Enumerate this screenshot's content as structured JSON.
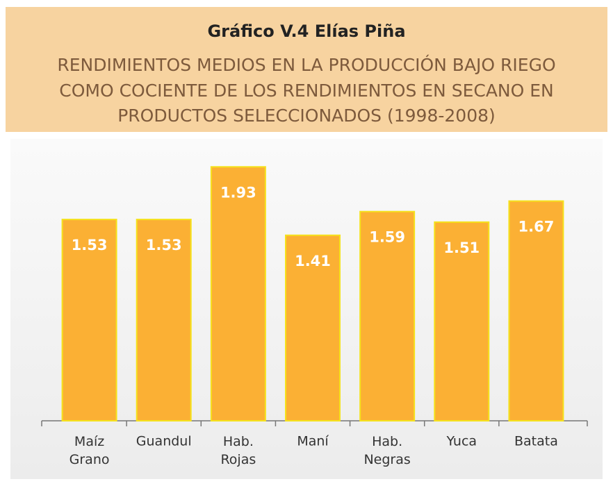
{
  "chart_data": {
    "type": "bar",
    "title": "Gráfico V.4 Elías Piña",
    "subtitle": [
      "RENDIMIENTOS MEDIOS EN LA PRODUCCIÓN BAJO RIEGO",
      "COMO COCIENTE DE LOS RENDIMIENTOS EN SECANO EN",
      "PRODUCTOS SELECCIONADOS (1998-2008)"
    ],
    "categories": [
      "Maíz Grano",
      "Guandul",
      "Hab. Rojas",
      "Maní",
      "Hab. Negras",
      "Yuca",
      "Batata"
    ],
    "values": [
      1.53,
      1.53,
      1.93,
      1.41,
      1.59,
      1.51,
      1.67
    ],
    "color": "#fbb034",
    "ylim": [
      0,
      2
    ]
  }
}
